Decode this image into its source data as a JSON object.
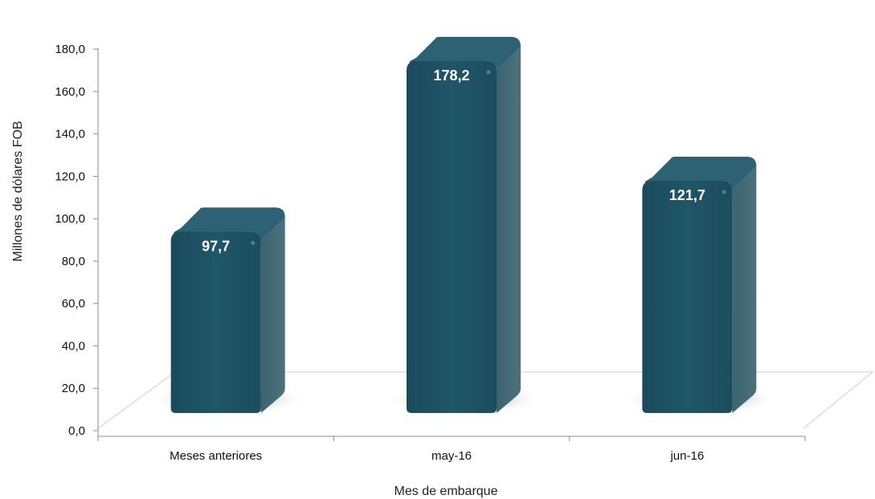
{
  "chart_data": {
    "type": "bar",
    "categories": [
      "Meses anteriores",
      "may-16",
      "jun-16"
    ],
    "values": [
      97.7,
      178.2,
      121.7
    ],
    "data_labels": [
      "97,7",
      "178,2",
      "121,7"
    ],
    "title": "",
    "xlabel": "Mes de embarque",
    "ylabel": "Millones de dólares FOB",
    "ylim": [
      0,
      180
    ],
    "yticks": [
      "0,0",
      "20,0",
      "40,0",
      "60,0",
      "80,0",
      "100,0",
      "120,0",
      "140,0",
      "160,0",
      "180,0"
    ],
    "grid": false,
    "legend": "none",
    "style": "3d-cylinder",
    "colors": {
      "bar_front": "#1f5466",
      "bar_side": "#436b77",
      "bar_top": "#2c6273",
      "axis": "#8c8c8c",
      "floor": "#dddddd"
    }
  }
}
